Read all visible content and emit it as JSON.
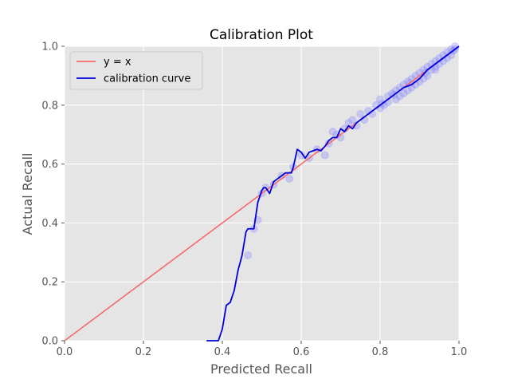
{
  "chart_data": {
    "type": "line",
    "title": "Calibration Plot",
    "xlabel": "Predicted Recall",
    "ylabel": "Actual Recall",
    "xlim": [
      0.0,
      1.0
    ],
    "ylim": [
      0.0,
      1.0
    ],
    "xticks": [
      "0.0",
      "0.2",
      "0.4",
      "0.6",
      "0.8",
      "1.0"
    ],
    "yticks": [
      "0.0",
      "0.2",
      "0.4",
      "0.6",
      "0.8",
      "1.0"
    ],
    "grid": true,
    "background": "#e5e5e5",
    "legend": {
      "location": "top-left",
      "entries": [
        {
          "label": "y = x",
          "color": "#f8696b"
        },
        {
          "label": "calibration curve",
          "color": "#0000dd"
        }
      ]
    },
    "series": [
      {
        "name": "y = x",
        "color": "#f8696b",
        "x": [
          0.0,
          1.0
        ],
        "y": [
          0.0,
          1.0
        ]
      },
      {
        "name": "calibration curve",
        "color": "#0000dd",
        "x": [
          0.36,
          0.39,
          0.4,
          0.41,
          0.42,
          0.43,
          0.44,
          0.45,
          0.46,
          0.465,
          0.47,
          0.48,
          0.49,
          0.5,
          0.505,
          0.51,
          0.52,
          0.53,
          0.54,
          0.55,
          0.56,
          0.57,
          0.575,
          0.58,
          0.59,
          0.6,
          0.61,
          0.62,
          0.63,
          0.64,
          0.65,
          0.66,
          0.67,
          0.68,
          0.69,
          0.7,
          0.71,
          0.72,
          0.73,
          0.74,
          0.75,
          0.76,
          0.78,
          0.8,
          0.82,
          0.84,
          0.86,
          0.88,
          0.9,
          0.92,
          0.94,
          0.96,
          0.98,
          1.0
        ],
        "y": [
          0.0,
          0.0,
          0.04,
          0.12,
          0.13,
          0.17,
          0.24,
          0.29,
          0.37,
          0.38,
          0.38,
          0.38,
          0.47,
          0.51,
          0.52,
          0.52,
          0.5,
          0.54,
          0.55,
          0.56,
          0.57,
          0.57,
          0.57,
          0.59,
          0.65,
          0.64,
          0.62,
          0.64,
          0.645,
          0.65,
          0.645,
          0.66,
          0.68,
          0.69,
          0.69,
          0.72,
          0.71,
          0.73,
          0.72,
          0.74,
          0.75,
          0.76,
          0.78,
          0.8,
          0.82,
          0.84,
          0.86,
          0.87,
          0.89,
          0.92,
          0.94,
          0.96,
          0.98,
          1.0
        ]
      }
    ],
    "scatter": {
      "color": "#8a8aff",
      "opacity": 0.35,
      "points": [
        [
          0.465,
          0.29
        ],
        [
          0.48,
          0.38
        ],
        [
          0.49,
          0.41
        ],
        [
          0.5,
          0.5
        ],
        [
          0.51,
          0.52
        ],
        [
          0.53,
          0.53
        ],
        [
          0.55,
          0.56
        ],
        [
          0.57,
          0.55
        ],
        [
          0.58,
          0.59
        ],
        [
          0.6,
          0.63
        ],
        [
          0.62,
          0.62
        ],
        [
          0.64,
          0.65
        ],
        [
          0.66,
          0.63
        ],
        [
          0.67,
          0.67
        ],
        [
          0.68,
          0.71
        ],
        [
          0.69,
          0.7
        ],
        [
          0.7,
          0.69
        ],
        [
          0.71,
          0.72
        ],
        [
          0.72,
          0.74
        ],
        [
          0.73,
          0.75
        ],
        [
          0.74,
          0.73
        ],
        [
          0.75,
          0.77
        ],
        [
          0.76,
          0.75
        ],
        [
          0.77,
          0.78
        ],
        [
          0.78,
          0.77
        ],
        [
          0.79,
          0.8
        ],
        [
          0.8,
          0.79
        ],
        [
          0.8,
          0.82
        ],
        [
          0.81,
          0.8
        ],
        [
          0.82,
          0.83
        ],
        [
          0.82,
          0.81
        ],
        [
          0.83,
          0.84
        ],
        [
          0.84,
          0.82
        ],
        [
          0.84,
          0.85
        ],
        [
          0.85,
          0.83
        ],
        [
          0.85,
          0.86
        ],
        [
          0.86,
          0.84
        ],
        [
          0.86,
          0.87
        ],
        [
          0.87,
          0.85
        ],
        [
          0.87,
          0.88
        ],
        [
          0.88,
          0.86
        ],
        [
          0.88,
          0.89
        ],
        [
          0.89,
          0.87
        ],
        [
          0.89,
          0.9
        ],
        [
          0.9,
          0.88
        ],
        [
          0.9,
          0.91
        ],
        [
          0.91,
          0.89
        ],
        [
          0.91,
          0.92
        ],
        [
          0.92,
          0.9
        ],
        [
          0.92,
          0.93
        ],
        [
          0.93,
          0.92
        ],
        [
          0.93,
          0.94
        ],
        [
          0.94,
          0.93
        ],
        [
          0.94,
          0.95
        ],
        [
          0.95,
          0.94
        ],
        [
          0.95,
          0.96
        ],
        [
          0.96,
          0.95
        ],
        [
          0.96,
          0.97
        ],
        [
          0.97,
          0.96
        ],
        [
          0.97,
          0.98
        ],
        [
          0.98,
          0.97
        ],
        [
          0.98,
          0.99
        ],
        [
          0.99,
          0.99
        ],
        [
          0.99,
          1.0
        ],
        [
          0.985,
          0.985
        ],
        [
          0.94,
          0.92
        ],
        [
          0.915,
          0.91
        ],
        [
          0.875,
          0.875
        ],
        [
          0.835,
          0.835
        ],
        [
          0.805,
          0.805
        ]
      ]
    }
  }
}
